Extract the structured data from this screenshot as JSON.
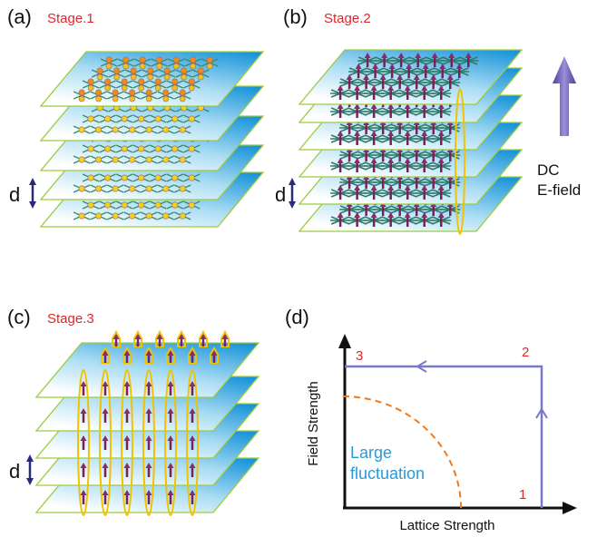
{
  "panels": [
    {
      "label": "(a)",
      "stage": "Stage.1",
      "d": "d"
    },
    {
      "label": "(b)",
      "stage": "Stage.2",
      "d": "d",
      "field_label": [
        "DC",
        "E-field"
      ]
    },
    {
      "label": "(c)",
      "stage": "Stage.3",
      "d": "d"
    },
    {
      "label": "(d)",
      "y_axis": "Field Strength",
      "x_axis": "Lattice Strength",
      "points": [
        "1",
        "2",
        "3"
      ],
      "region": [
        "Large",
        "fluctuation"
      ]
    }
  ]
}
